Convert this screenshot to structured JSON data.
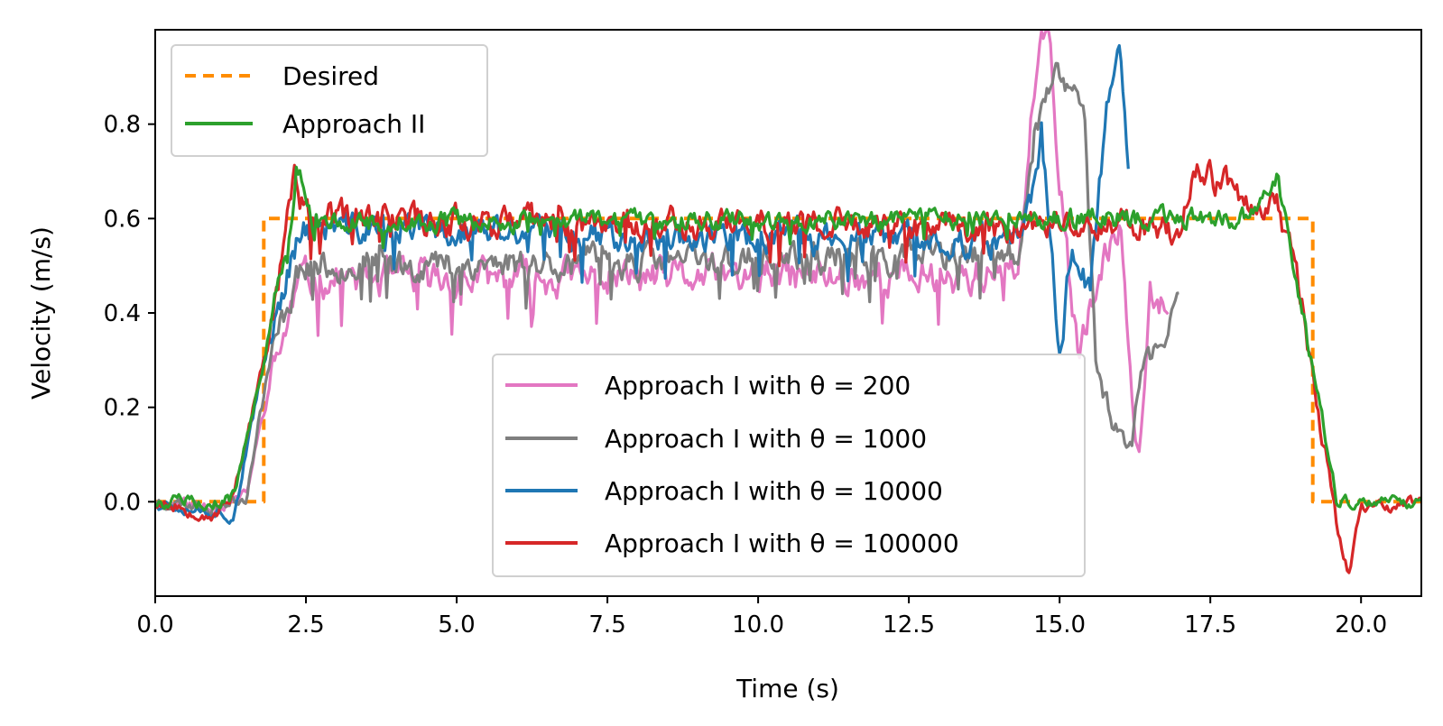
{
  "chart_data": {
    "type": "line",
    "xlabel": "Time (s)",
    "ylabel": "Velocity (m/s)",
    "xlim": [
      0,
      21
    ],
    "ylim": [
      -0.2,
      1.0
    ],
    "xticks": [
      0.0,
      2.5,
      5.0,
      7.5,
      10.0,
      12.5,
      15.0,
      17.5,
      20.0
    ],
    "xtick_labels": [
      "0.0",
      "2.5",
      "5.0",
      "7.5",
      "10.0",
      "12.5",
      "15.0",
      "17.5",
      "20.0"
    ],
    "yticks": [
      0.0,
      0.2,
      0.4,
      0.6,
      0.8
    ],
    "ytick_labels": [
      "0.0",
      "0.2",
      "0.4",
      "0.6",
      "0.8"
    ],
    "grid": false,
    "legends": [
      {
        "location": "upper-left",
        "entries": [
          "Desired",
          "Approach II"
        ]
      },
      {
        "location": "lower-center",
        "entries": [
          "Approach I with θ = 200",
          "Approach I with θ = 1000",
          "Approach I with θ = 10000",
          "Approach I with θ = 100000"
        ]
      }
    ],
    "series": [
      {
        "name": "Desired",
        "color": "#ff8c00",
        "style": "dashed",
        "x": [
          0,
          1.8,
          1.8,
          19.2,
          19.2,
          21
        ],
        "y": [
          0,
          0,
          0.6,
          0.6,
          0,
          0
        ]
      },
      {
        "name": "Approach II",
        "color": "#2ca02c",
        "style": "solid",
        "base": 0.6,
        "amp": 0.02,
        "seed": 5,
        "x": [
          0,
          1.0,
          1.3,
          1.8,
          2.0,
          2.2,
          2.35,
          2.6,
          14.0,
          18.2,
          18.6,
          18.9,
          19.3,
          19.6,
          21
        ],
        "y": [
          0.0,
          0.0,
          0.01,
          0.3,
          0.45,
          0.52,
          0.72,
          0.59,
          0.6,
          0.6,
          0.69,
          0.5,
          0.2,
          0.0,
          0.0
        ]
      },
      {
        "name": "Approach I with θ = 200",
        "color": "#e377c2",
        "style": "solid",
        "base": 0.5,
        "amp": 0.035,
        "seed": 11,
        "x": [
          0,
          1.0,
          1.5,
          1.9,
          2.4,
          14.3,
          14.6,
          14.8,
          15.0,
          15.3,
          15.5,
          16.0,
          16.3,
          16.5,
          16.8
        ],
        "y": [
          0.0,
          -0.01,
          0.01,
          0.25,
          0.47,
          0.48,
          0.9,
          1.0,
          0.7,
          0.3,
          0.4,
          0.6,
          0.1,
          0.45,
          0.42
        ]
      },
      {
        "name": "Approach I with θ = 1000",
        "color": "#7f7f7f",
        "style": "solid",
        "base": 0.52,
        "amp": 0.03,
        "seed": 23,
        "x": [
          0,
          1.0,
          1.5,
          1.9,
          2.4,
          14.3,
          14.6,
          15.0,
          15.4,
          15.6,
          15.8,
          16.2,
          16.4,
          16.8,
          17.0
        ],
        "y": [
          0.0,
          -0.01,
          0.01,
          0.3,
          0.5,
          0.52,
          0.8,
          0.9,
          0.85,
          0.3,
          0.2,
          0.12,
          0.3,
          0.35,
          0.47
        ]
      },
      {
        "name": "Approach I with θ = 10000",
        "color": "#1f77b4",
        "style": "solid",
        "base": 0.555,
        "amp": 0.03,
        "seed": 37,
        "x": [
          0,
          1.0,
          1.3,
          1.9,
          2.4,
          14.4,
          14.7,
          15.0,
          15.2,
          15.5,
          15.8,
          16.0,
          16.15
        ],
        "y": [
          0.0,
          -0.02,
          -0.03,
          0.35,
          0.58,
          0.55,
          0.78,
          0.3,
          0.55,
          0.45,
          0.85,
          1.0,
          0.7
        ]
      },
      {
        "name": "Approach I with θ = 100000",
        "color": "#d62728",
        "style": "solid",
        "base": 0.575,
        "amp": 0.03,
        "seed": 53,
        "x": [
          0,
          1.0,
          1.3,
          1.9,
          2.3,
          2.5,
          14.4,
          15.0,
          17.0,
          17.3,
          18.6,
          18.9,
          19.3,
          19.6,
          19.8,
          20.0,
          21
        ],
        "y": [
          0.0,
          -0.03,
          0.02,
          0.35,
          0.69,
          0.6,
          0.58,
          0.6,
          0.58,
          0.7,
          0.62,
          0.5,
          0.2,
          -0.05,
          -0.15,
          -0.02,
          0.0
        ]
      }
    ]
  }
}
